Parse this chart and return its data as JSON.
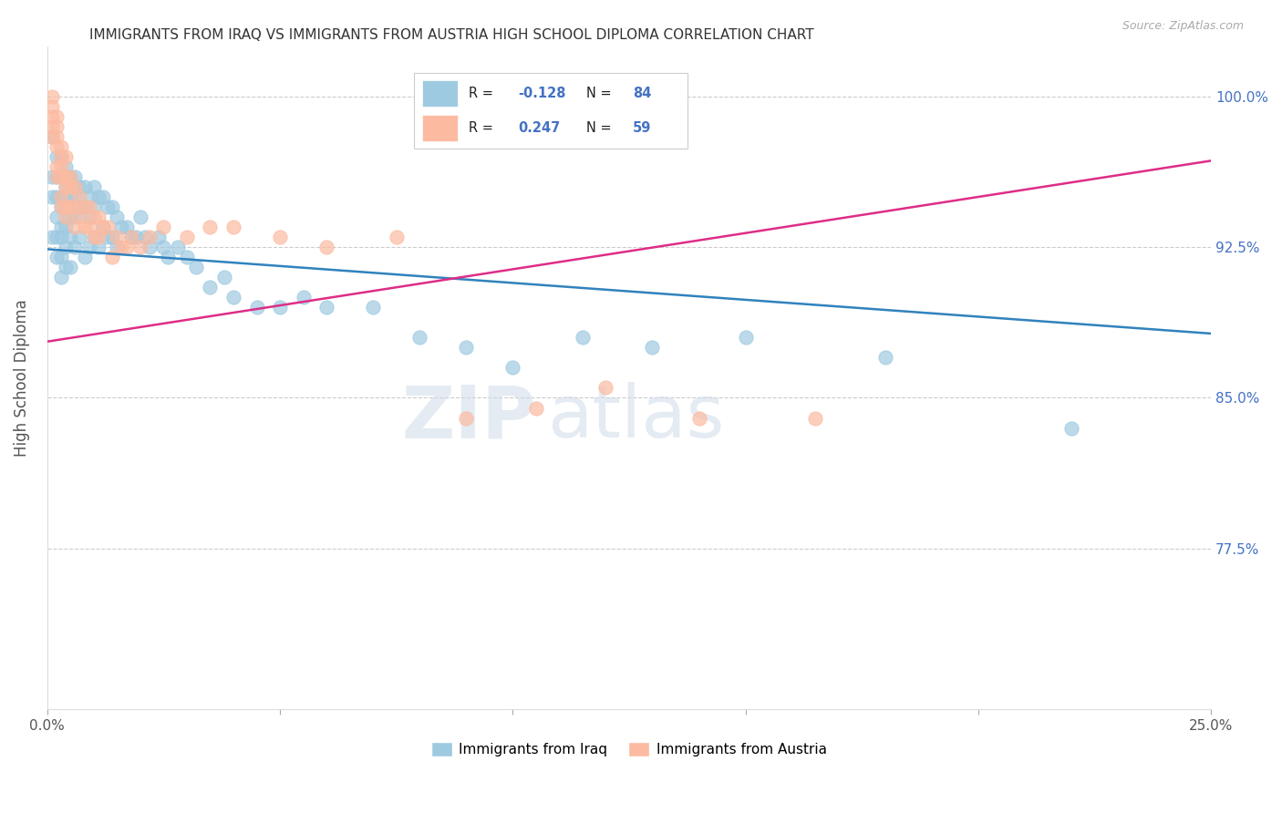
{
  "title": "IMMIGRANTS FROM IRAQ VS IMMIGRANTS FROM AUSTRIA HIGH SCHOOL DIPLOMA CORRELATION CHART",
  "source": "Source: ZipAtlas.com",
  "ylabel": "High School Diploma",
  "watermark": "ZIPatlas",
  "iraq_color": "#9ecae1",
  "austria_color": "#fcbba1",
  "iraq_line_color": "#3182bd",
  "austria_line_color": "#de2d87",
  "iraq_line_x0": 0.0,
  "iraq_line_y0": 0.924,
  "iraq_line_x1": 0.25,
  "iraq_line_y1": 0.882,
  "austria_line_x0": 0.0,
  "austria_line_y0": 0.878,
  "austria_line_x1": 0.25,
  "austria_line_y1": 0.968,
  "ylim_min": 0.695,
  "ylim_max": 1.025,
  "xlim_min": 0.0,
  "xlim_max": 0.25,
  "ytick_positions": [
    0.775,
    0.85,
    0.925,
    1.0
  ],
  "ytick_labels": [
    "77.5%",
    "85.0%",
    "92.5%",
    "100.0%"
  ],
  "xtick_positions": [
    0.0,
    0.05,
    0.1,
    0.15,
    0.2,
    0.25
  ],
  "xtick_labels": [
    "0.0%",
    "",
    "",
    "",
    "",
    "25.0%"
  ],
  "iraq_x": [
    0.001,
    0.001,
    0.001,
    0.001,
    0.002,
    0.002,
    0.002,
    0.002,
    0.002,
    0.002,
    0.003,
    0.003,
    0.003,
    0.003,
    0.003,
    0.003,
    0.003,
    0.003,
    0.004,
    0.004,
    0.004,
    0.004,
    0.004,
    0.004,
    0.005,
    0.005,
    0.005,
    0.005,
    0.005,
    0.006,
    0.006,
    0.006,
    0.006,
    0.007,
    0.007,
    0.007,
    0.008,
    0.008,
    0.008,
    0.009,
    0.009,
    0.009,
    0.01,
    0.01,
    0.01,
    0.011,
    0.011,
    0.012,
    0.012,
    0.013,
    0.013,
    0.014,
    0.014,
    0.015,
    0.015,
    0.016,
    0.017,
    0.018,
    0.019,
    0.02,
    0.021,
    0.022,
    0.024,
    0.025,
    0.026,
    0.028,
    0.03,
    0.032,
    0.035,
    0.038,
    0.04,
    0.045,
    0.05,
    0.055,
    0.06,
    0.07,
    0.08,
    0.09,
    0.1,
    0.115,
    0.13,
    0.15,
    0.18,
    0.22
  ],
  "iraq_y": [
    0.98,
    0.96,
    0.95,
    0.93,
    0.97,
    0.96,
    0.95,
    0.94,
    0.93,
    0.92,
    0.97,
    0.96,
    0.95,
    0.945,
    0.935,
    0.93,
    0.92,
    0.91,
    0.965,
    0.955,
    0.945,
    0.935,
    0.925,
    0.915,
    0.96,
    0.95,
    0.94,
    0.93,
    0.915,
    0.96,
    0.95,
    0.94,
    0.925,
    0.955,
    0.945,
    0.93,
    0.955,
    0.945,
    0.92,
    0.95,
    0.94,
    0.925,
    0.955,
    0.945,
    0.93,
    0.95,
    0.925,
    0.95,
    0.935,
    0.945,
    0.93,
    0.945,
    0.93,
    0.94,
    0.925,
    0.935,
    0.935,
    0.93,
    0.93,
    0.94,
    0.93,
    0.925,
    0.93,
    0.925,
    0.92,
    0.925,
    0.92,
    0.915,
    0.905,
    0.91,
    0.9,
    0.895,
    0.895,
    0.9,
    0.895,
    0.895,
    0.88,
    0.875,
    0.865,
    0.88,
    0.875,
    0.88,
    0.87,
    0.835
  ],
  "austria_x": [
    0.001,
    0.001,
    0.001,
    0.001,
    0.001,
    0.002,
    0.002,
    0.002,
    0.002,
    0.002,
    0.002,
    0.003,
    0.003,
    0.003,
    0.003,
    0.003,
    0.003,
    0.004,
    0.004,
    0.004,
    0.004,
    0.004,
    0.005,
    0.005,
    0.005,
    0.006,
    0.006,
    0.006,
    0.007,
    0.007,
    0.008,
    0.008,
    0.009,
    0.009,
    0.01,
    0.01,
    0.011,
    0.011,
    0.012,
    0.013,
    0.014,
    0.015,
    0.016,
    0.017,
    0.018,
    0.02,
    0.022,
    0.025,
    0.03,
    0.035,
    0.04,
    0.05,
    0.06,
    0.075,
    0.09,
    0.105,
    0.12,
    0.14,
    0.165
  ],
  "austria_y": [
    1.0,
    0.995,
    0.99,
    0.985,
    0.98,
    0.99,
    0.985,
    0.98,
    0.975,
    0.965,
    0.96,
    0.975,
    0.97,
    0.965,
    0.96,
    0.95,
    0.945,
    0.97,
    0.96,
    0.955,
    0.945,
    0.94,
    0.96,
    0.955,
    0.945,
    0.955,
    0.945,
    0.935,
    0.95,
    0.94,
    0.945,
    0.935,
    0.945,
    0.935,
    0.94,
    0.93,
    0.94,
    0.93,
    0.935,
    0.935,
    0.92,
    0.93,
    0.925,
    0.925,
    0.93,
    0.925,
    0.93,
    0.935,
    0.93,
    0.935,
    0.935,
    0.93,
    0.925,
    0.93,
    0.84,
    0.845,
    0.855,
    0.84,
    0.84
  ]
}
